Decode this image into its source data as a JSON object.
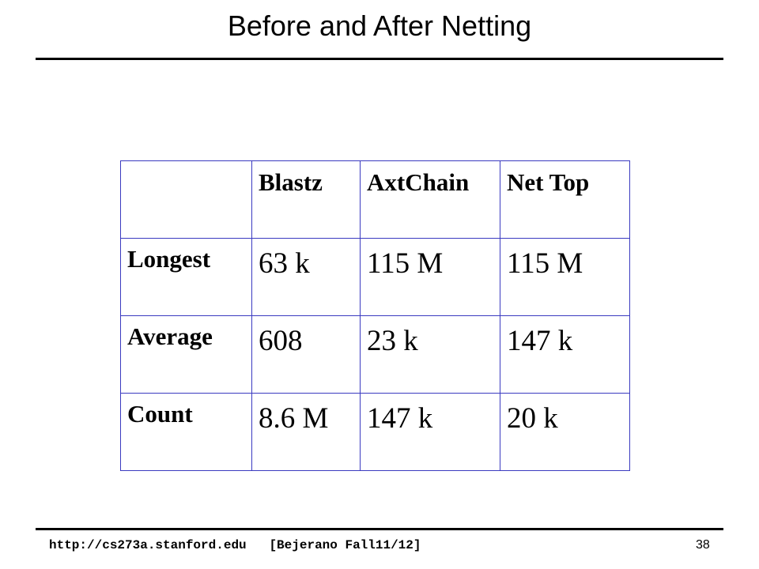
{
  "header": {
    "title": "Before and After Netting"
  },
  "table": {
    "columns": [
      "Blastz",
      "AxtChain",
      "Net Top"
    ],
    "rows": [
      {
        "label": "Longest",
        "cells": [
          "63 k",
          "115 M",
          "115 M"
        ]
      },
      {
        "label": "Average",
        "cells": [
          "608",
          "23 k",
          "147 k"
        ]
      },
      {
        "label": "Count",
        "cells": [
          "8.6 M",
          "147 k",
          "20 k"
        ]
      }
    ]
  },
  "footer": {
    "url": "http://cs273a.stanford.edu",
    "course": "[Bejerano Fall11/12]",
    "page": "38"
  }
}
